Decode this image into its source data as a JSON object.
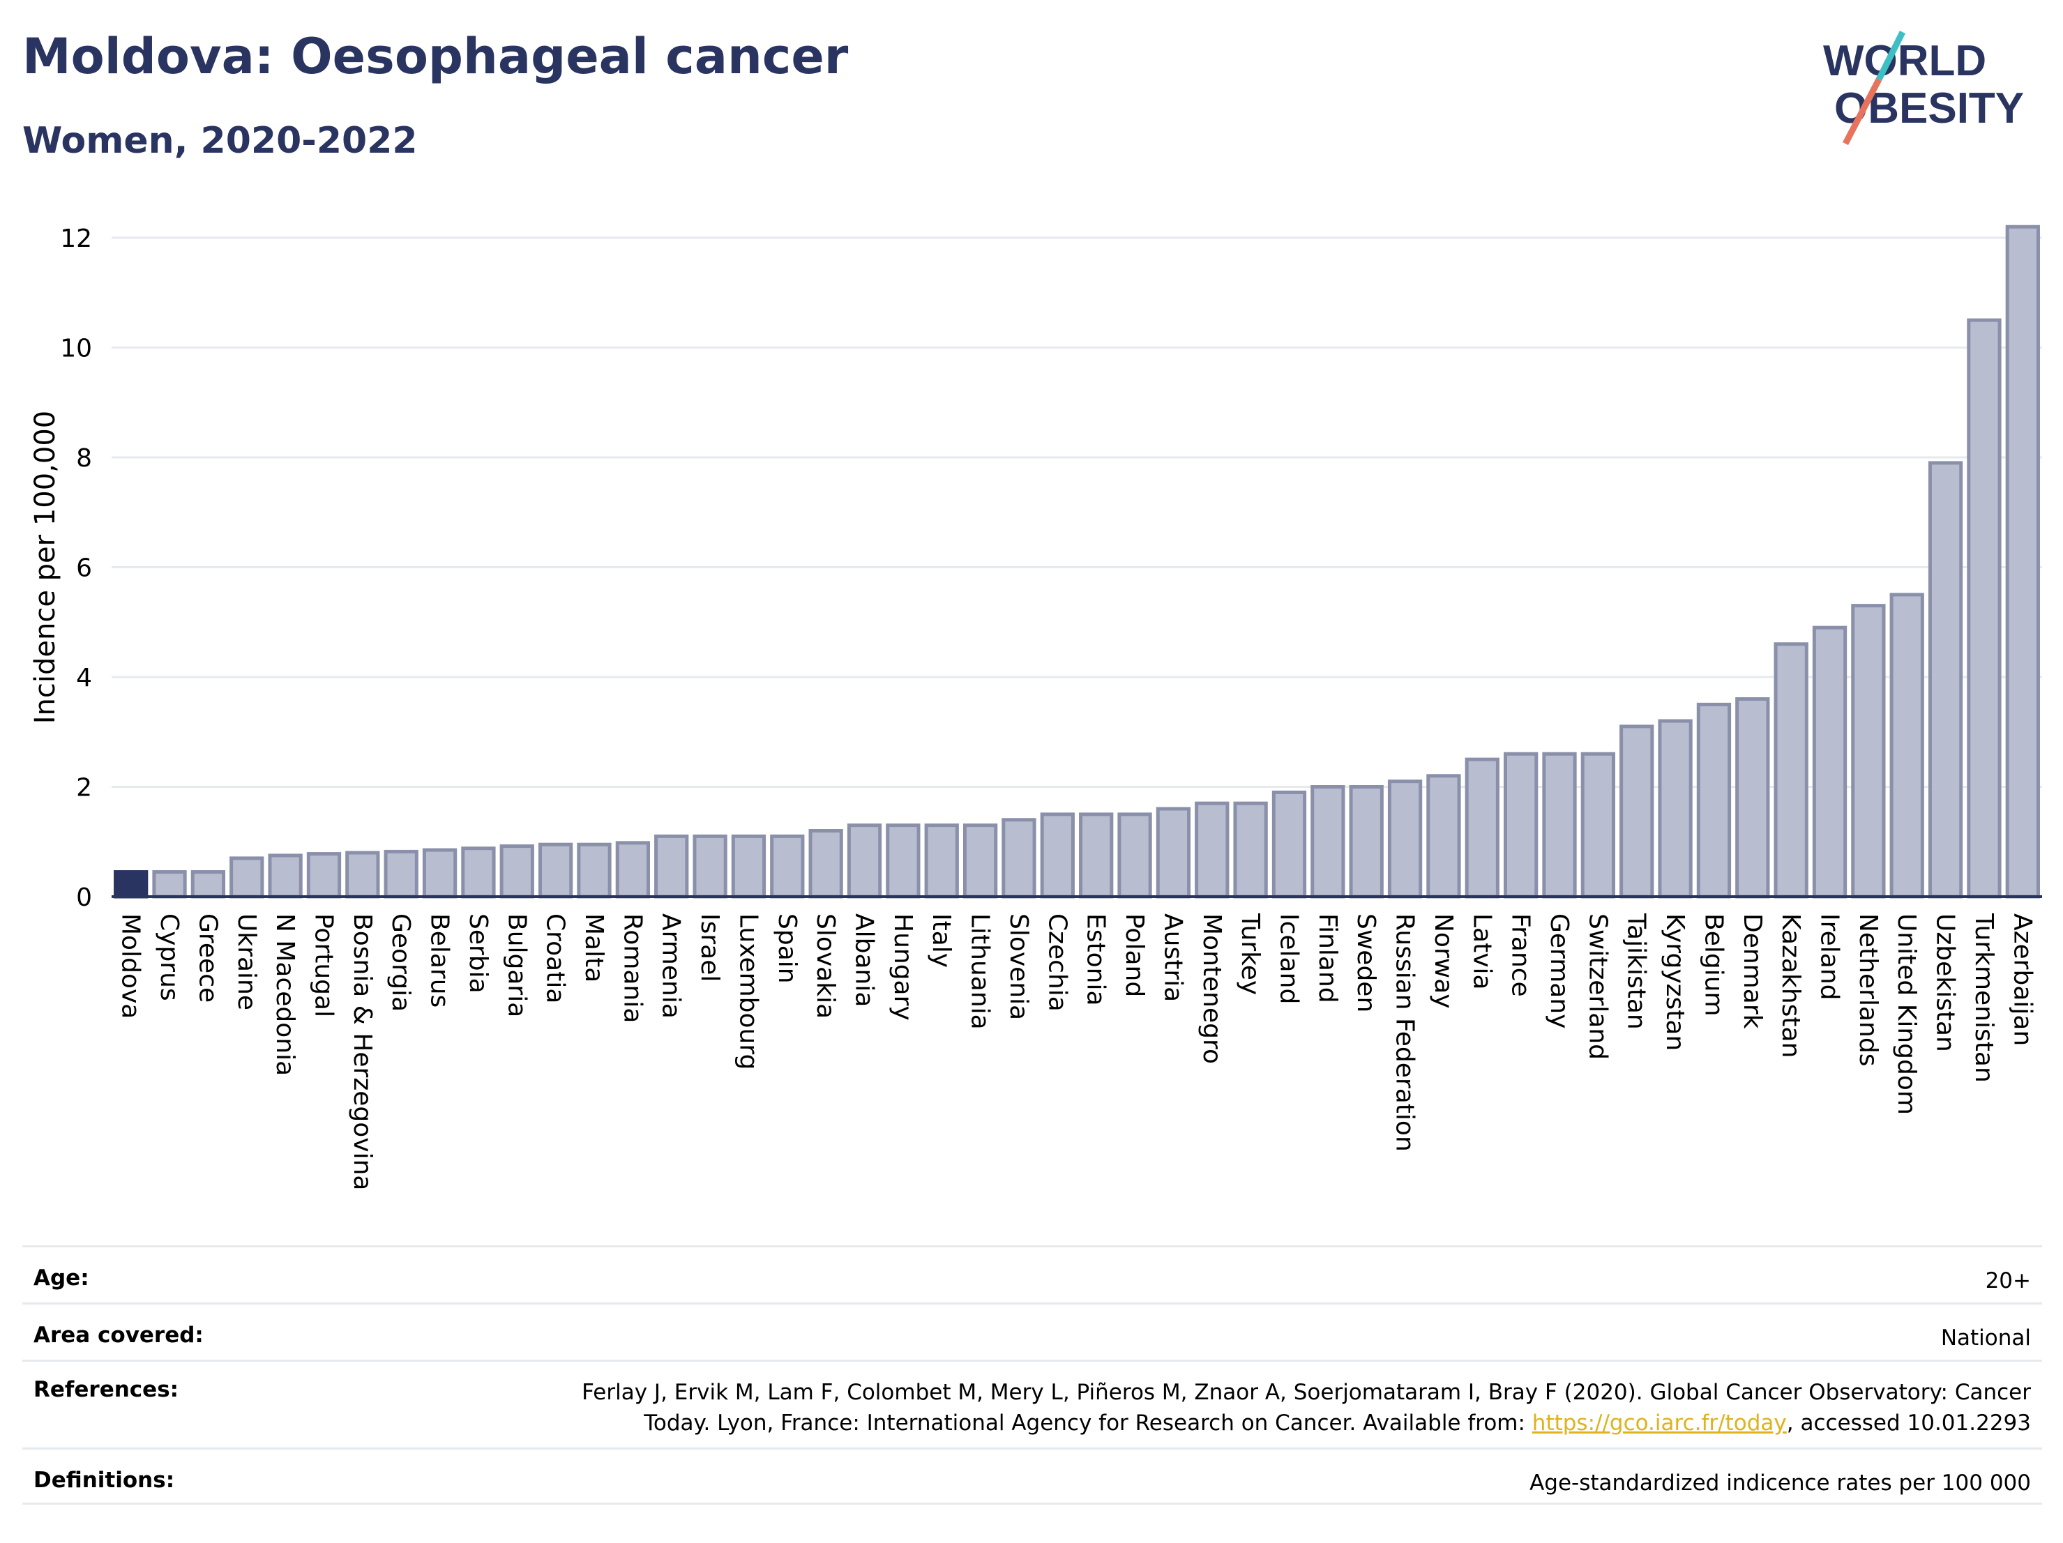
{
  "header": {
    "title": "Moldova: Oesophageal cancer",
    "subtitle": "Women, 2020-2022"
  },
  "logo": {
    "line1": "WORLD",
    "line2": "OBESITY",
    "accent_teal": "#3dbfc4",
    "accent_coral": "#e8735c",
    "color": "#2a3461"
  },
  "chart_data": {
    "type": "bar",
    "title": "Moldova: Oesophageal cancer",
    "subtitle": "Women, 2020-2022",
    "xlabel": "",
    "ylabel": "Incidence per 100,000",
    "ylim": [
      0,
      12.6
    ],
    "yticks": [
      0,
      2,
      4,
      6,
      8,
      10,
      12
    ],
    "grid": true,
    "highlight": "Moldova",
    "colors": {
      "highlight": "#2a3461",
      "bar_fill": "#b8bdcf",
      "bar_stroke": "#8a90aa"
    },
    "categories": [
      "Moldova",
      "Cyprus",
      "Greece",
      "Ukraine",
      "N Macedonia",
      "Portugal",
      "Bosnia & Herzegovina",
      "Georgia",
      "Belarus",
      "Serbia",
      "Bulgaria",
      "Croatia",
      "Malta",
      "Romania",
      "Armenia",
      "Israel",
      "Luxembourg",
      "Spain",
      "Slovakia",
      "Albania",
      "Hungary",
      "Italy",
      "Lithuania",
      "Slovenia",
      "Czechia",
      "Estonia",
      "Poland",
      "Austria",
      "Montenegro",
      "Turkey",
      "Iceland",
      "Finland",
      "Sweden",
      "Russian Federation",
      "Norway",
      "Latvia",
      "France",
      "Germany",
      "Switzerland",
      "Tajikistan",
      "Kyrgyzstan",
      "Belgium",
      "Denmark",
      "Kazakhstan",
      "Ireland",
      "Netherlands",
      "United Kingdom",
      "Uzbekistan",
      "Turkmenistan",
      "Azerbaijan"
    ],
    "values": [
      0.45,
      0.45,
      0.45,
      0.7,
      0.75,
      0.78,
      0.8,
      0.82,
      0.85,
      0.88,
      0.92,
      0.95,
      0.95,
      0.98,
      1.1,
      1.1,
      1.1,
      1.1,
      1.2,
      1.3,
      1.3,
      1.3,
      1.3,
      1.4,
      1.5,
      1.5,
      1.5,
      1.6,
      1.7,
      1.7,
      1.9,
      2.0,
      2.0,
      2.1,
      2.2,
      2.5,
      2.6,
      2.6,
      2.6,
      3.1,
      3.2,
      3.5,
      3.6,
      4.6,
      4.9,
      5.3,
      5.5,
      7.9,
      10.5,
      12.2
    ]
  },
  "meta": {
    "age_label": "Age:",
    "age_value": "20+",
    "area_label": "Area covered:",
    "area_value": "National",
    "references_label": "References:",
    "references_text": "Ferlay J, Ervik M, Lam F, Colombet M, Mery L, Piñeros M, Znaor A, Soerjomataram I, Bray F (2020). Global Cancer Observatory: Cancer Today. Lyon, France: International Agency for Research on Cancer. Available from: ",
    "references_link": "https://gco.iarc.fr/today",
    "references_suffix": ", accessed 10.01.2293",
    "definitions_label": "Definitions:",
    "definitions_value": "Age-standardized indicence rates per 100 000"
  }
}
